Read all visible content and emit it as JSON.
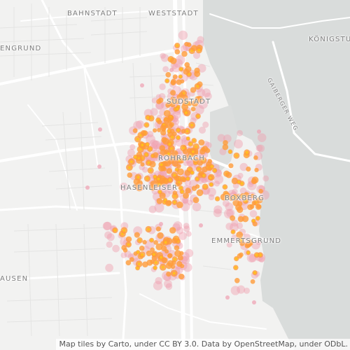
{
  "map": {
    "labels": {
      "bahnstadt": "BAHNSTADT",
      "weststadt": "WESTSTADT",
      "koenigstuhl": "KÖNIGSTU",
      "pfaffengrund": "ENGRUND",
      "gaisbergweg": "GAIBERGER WEG",
      "suedstadt": "SÜDSTADT",
      "rohrbach": "ROHRBACH",
      "hasenleiser": "HASENLEISER",
      "boxberg": "BOXBERG",
      "emmertsgrund": "EMMERTSGRUND",
      "wieblingen": "AUSEN"
    },
    "attribution": "Map tiles by Carto, under CC BY 3.0. Data by OpenStreetMap, under ODbL.",
    "colors": {
      "background": "#f2f2f1",
      "forest": "#d9dcdb",
      "road": "#ffffff",
      "heat_core": "#ffc21a",
      "heat_mid": "#ff9b3a",
      "heat_edge": "#f0a0b0"
    }
  }
}
